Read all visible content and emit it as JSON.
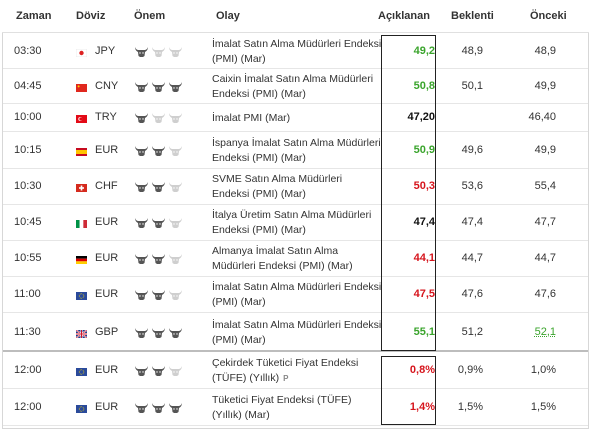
{
  "header": {
    "time": "Zaman",
    "currency": "Döviz",
    "importance": "Önem",
    "event": "Olay",
    "actual": "Açıklanan",
    "forecast": "Beklenti",
    "previous": "Önceki"
  },
  "rows": [
    {
      "time": "03:30",
      "flag": "japan-flag-icon",
      "currency": "JPY",
      "importance": 1,
      "event": "İmalat Satın Alma Müdürleri Endeksi (PMI) (Mar)",
      "actual": "49,2",
      "actual_color": "green",
      "forecast": "48,9",
      "previous": "48,9",
      "previous_style": "normal"
    },
    {
      "time": "04:45",
      "flag": "china-flag-icon",
      "currency": "CNY",
      "importance": 3,
      "event": "Caixin İmalat Satın Alma Müdürleri Endeksi (PMI) (Mar)",
      "actual": "50,8",
      "actual_color": "green",
      "forecast": "50,1",
      "previous": "49,9",
      "previous_style": "normal"
    },
    {
      "time": "10:00",
      "flag": "turkey-flag-icon",
      "currency": "TRY",
      "importance": 1,
      "event": "İmalat PMI (Mar)",
      "actual": "47,20",
      "actual_color": "black",
      "forecast": "",
      "previous": "46,40",
      "previous_style": "normal"
    },
    {
      "time": "10:15",
      "flag": "spain-flag-icon",
      "currency": "EUR",
      "importance": 2,
      "event": "İspanya İmalat Satın Alma Müdürleri Endeksi (PMI) (Mar)",
      "actual": "50,9",
      "actual_color": "green",
      "forecast": "49,6",
      "previous": "49,9",
      "previous_style": "normal"
    },
    {
      "time": "10:30",
      "flag": "switzerland-flag-icon",
      "currency": "CHF",
      "importance": 2,
      "event": "SVME Satın Alma Müdürleri Endeksi (PMI) (Mar)",
      "actual": "50,3",
      "actual_color": "red",
      "forecast": "53,6",
      "previous": "55,4",
      "previous_style": "normal"
    },
    {
      "time": "10:45",
      "flag": "italy-flag-icon",
      "currency": "EUR",
      "importance": 2,
      "event": "İtalya Üretim Satın Alma Müdürleri Endeksi (PMI) (Mar)",
      "actual": "47,4",
      "actual_color": "black",
      "forecast": "47,4",
      "previous": "47,7",
      "previous_style": "normal"
    },
    {
      "time": "10:55",
      "flag": "germany-flag-icon",
      "currency": "EUR",
      "importance": 2,
      "event": "Almanya İmalat Satın Alma Müdürleri Endeksi (PMI) (Mar)",
      "actual": "44,1",
      "actual_color": "red",
      "forecast": "44,7",
      "previous": "44,7",
      "previous_style": "normal"
    },
    {
      "time": "11:00",
      "flag": "eu-flag-icon",
      "currency": "EUR",
      "importance": 2,
      "event": "İmalat Satın Alma Müdürleri Endeksi (PMI) (Mar)",
      "actual": "47,5",
      "actual_color": "red",
      "forecast": "47,6",
      "previous": "47,6",
      "previous_style": "normal"
    },
    {
      "time": "11:30",
      "flag": "uk-flag-icon",
      "currency": "GBP",
      "importance": 3,
      "event": "İmalat Satın Alma Müdürleri Endeksi (PMI) (Mar)",
      "actual": "55,1",
      "actual_color": "green",
      "forecast": "51,2",
      "previous": "52,1",
      "previous_style": "underlined"
    },
    {
      "time": "12:00",
      "flag": "eu-flag-icon",
      "currency": "EUR",
      "importance": 2,
      "event": "Çekirdek Tüketici Fiyat Endeksi (TÜFE) (Yıllık)",
      "badge": "P",
      "actual": "0,8%",
      "actual_color": "red",
      "forecast": "0,9%",
      "previous": "1,0%",
      "previous_style": "normal"
    },
    {
      "time": "12:00",
      "flag": "eu-flag-icon",
      "currency": "EUR",
      "importance": 3,
      "event": "Tüketici Fiyat Endeksi (TÜFE) (Yıllık) (Mar)",
      "actual": "1,4%",
      "actual_color": "red",
      "forecast": "1,5%",
      "previous": "1,5%",
      "previous_style": "normal"
    }
  ],
  "colors": {
    "green": "#3aa42c",
    "red": "#d6141c",
    "bull_dark": "#555555",
    "bull_light": "#cfcfcf"
  }
}
